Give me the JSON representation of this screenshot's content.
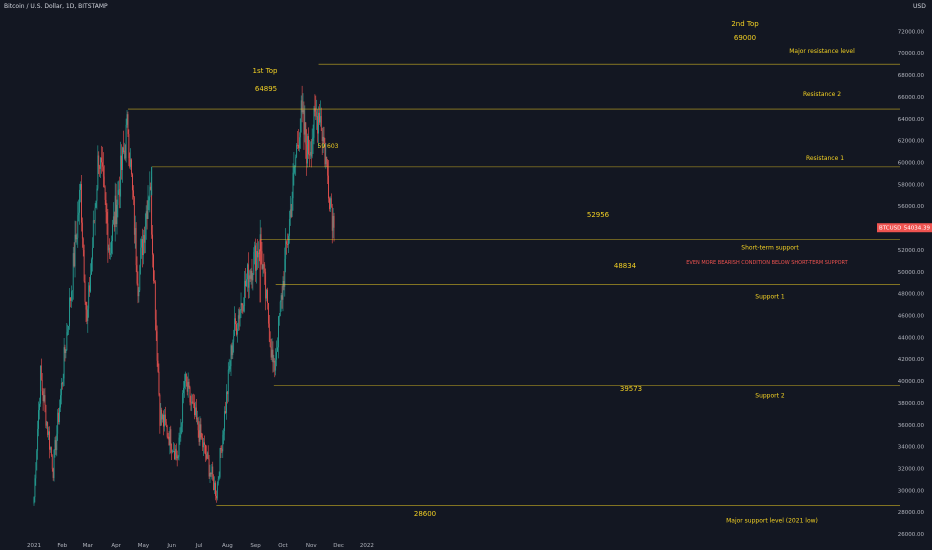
{
  "header": {
    "symbol_title": "Bitcoin / U.S. Dollar, 1D, BITSTAMP",
    "currency": "USD"
  },
  "colors": {
    "background": "#131722",
    "up": "#26a69a",
    "down": "#ef5350",
    "annotation": "#f2d024",
    "warning": "#ef5350",
    "axis_text": "#b2b5be"
  },
  "chart_data": {
    "type": "candlestick",
    "title": "Bitcoin / U.S. Dollar, 1D, BITSTAMP",
    "xlabel": "",
    "ylabel": "USD",
    "ylim": [
      25000,
      73500
    ],
    "y_ticks": [
      26000,
      28000,
      30000,
      32000,
      34000,
      36000,
      38000,
      40000,
      42000,
      44000,
      46000,
      48000,
      50000,
      52000,
      54000,
      56000,
      58000,
      60000,
      62000,
      64000,
      66000,
      68000,
      70000,
      72000
    ],
    "x_ticks": [
      "2021",
      "Feb",
      "Mar",
      "Apr",
      "May",
      "Jun",
      "Jul",
      "Aug",
      "Sep",
      "Oct",
      "Nov",
      "Dec",
      "2022"
    ],
    "price_label": {
      "symbol": "BTCUSD",
      "value": "54034.39"
    },
    "closes_approx": [
      {
        "date": "2021-01-01",
        "close": 29400
      },
      {
        "date": "2021-01-08",
        "close": 40500
      },
      {
        "date": "2021-01-22",
        "close": 32000
      },
      {
        "date": "2021-02-08",
        "close": 46000
      },
      {
        "date": "2021-02-21",
        "close": 57500
      },
      {
        "date": "2021-02-28",
        "close": 45000
      },
      {
        "date": "2021-03-13",
        "close": 61000
      },
      {
        "date": "2021-03-25",
        "close": 52000
      },
      {
        "date": "2021-04-14",
        "close": 63500
      },
      {
        "date": "2021-04-25",
        "close": 49000
      },
      {
        "date": "2021-05-08",
        "close": 58500
      },
      {
        "date": "2021-05-19",
        "close": 37000
      },
      {
        "date": "2021-06-08",
        "close": 33000
      },
      {
        "date": "2021-06-15",
        "close": 40000
      },
      {
        "date": "2021-07-20",
        "close": 29800
      },
      {
        "date": "2021-08-07",
        "close": 44000
      },
      {
        "date": "2021-08-23",
        "close": 49500
      },
      {
        "date": "2021-09-06",
        "close": 52700
      },
      {
        "date": "2021-09-21",
        "close": 40700
      },
      {
        "date": "2021-10-20",
        "close": 64500
      },
      {
        "date": "2021-10-28",
        "close": 61000
      },
      {
        "date": "2021-11-10",
        "close": 65000
      },
      {
        "date": "2021-11-26",
        "close": 54034
      }
    ],
    "levels": [
      {
        "label": "Major resistance level",
        "value": 69000
      },
      {
        "label": "Resistance 2",
        "value": 64895
      },
      {
        "label": "Resistance 1",
        "value": 59603
      },
      {
        "label": "Short-term support",
        "value": 52956
      },
      {
        "label": "Support 1",
        "value": 48834
      },
      {
        "label": "Support 2",
        "value": 39573
      },
      {
        "label": "Major support level (2021 low)",
        "value": 28600
      }
    ],
    "annotations": {
      "first_top_label": "1st Top",
      "first_top_value": "64895",
      "second_top_label": "2nd Top",
      "second_top_value": "69000",
      "may_high_value": "59 603",
      "sep_high_value": "52956",
      "sep_low_value": "48834",
      "sep_bottom_value": "39573",
      "jul_low_value": "28600",
      "warning_text": "EVEN MORE BEARISH CONDITION BELOW SHORT-TERM SUPPORT"
    }
  }
}
